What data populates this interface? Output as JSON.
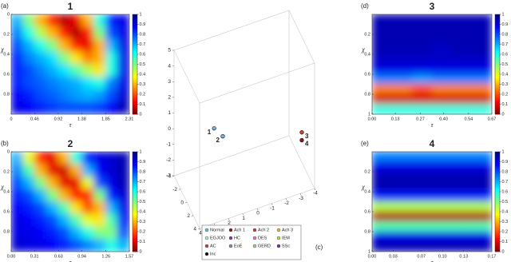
{
  "chart_data": [
    {
      "type": "heatmap",
      "panel_label": "(a)",
      "title": "1",
      "xlabel": "τ",
      "ylabel": "χ",
      "xlim": [
        0,
        2.31
      ],
      "xticks": [
        0,
        0.46,
        0.92,
        1.38,
        1.85,
        2.31
      ],
      "ylim": [
        0,
        1
      ],
      "yticks": [
        0,
        0.2,
        0.4,
        0.6,
        0.8
      ],
      "y_inverted": true,
      "clim": [
        0,
        1
      ],
      "cticks": [
        0,
        0.1,
        0.2,
        0.3,
        0.4,
        0.5,
        0.6,
        0.7,
        0.8,
        0.9,
        1
      ],
      "colormap": "jet_r",
      "values": [
        [
          0.7,
          0.5,
          0.3,
          0.15,
          0.05,
          0.1,
          0.3,
          0.6,
          0.85,
          0.9
        ],
        [
          0.75,
          0.6,
          0.45,
          0.3,
          0.15,
          0.05,
          0.15,
          0.5,
          0.8,
          0.9
        ],
        [
          0.8,
          0.7,
          0.6,
          0.5,
          0.3,
          0.15,
          0.1,
          0.3,
          0.7,
          0.9
        ],
        [
          0.85,
          0.75,
          0.7,
          0.65,
          0.5,
          0.35,
          0.25,
          0.3,
          0.6,
          0.9
        ],
        [
          0.85,
          0.8,
          0.75,
          0.7,
          0.65,
          0.55,
          0.45,
          0.35,
          0.6,
          0.9
        ],
        [
          0.85,
          0.8,
          0.78,
          0.75,
          0.72,
          0.7,
          0.65,
          0.6,
          0.75,
          0.9
        ],
        [
          0.88,
          0.85,
          0.8,
          0.78,
          0.75,
          0.72,
          0.7,
          0.72,
          0.8,
          0.92
        ],
        [
          0.9,
          0.88,
          0.85,
          0.82,
          0.8,
          0.8,
          0.8,
          0.82,
          0.88,
          0.95
        ]
      ]
    },
    {
      "type": "heatmap",
      "panel_label": "(b)",
      "title": "2",
      "xlabel": "τ",
      "ylabel": "χ",
      "xlim": [
        0,
        1.57
      ],
      "xticks": [
        {
          "value": 0,
          "label": "0.00"
        },
        0.31,
        0.63,
        0.94,
        1.26,
        1.57
      ],
      "ylim": [
        0,
        1
      ],
      "yticks": [
        0,
        0.2,
        0.4,
        0.6,
        0.8
      ],
      "y_inverted": true,
      "clim": [
        0,
        1
      ],
      "cticks": [
        0,
        0.1,
        0.2,
        0.3,
        0.4,
        0.5,
        0.6,
        0.7,
        0.8,
        0.9,
        1
      ],
      "colormap": "jet_r",
      "values": [
        [
          0.7,
          0.4,
          0.15,
          0.1,
          0.3,
          0.6,
          0.85,
          0.9,
          0.92,
          0.95
        ],
        [
          0.75,
          0.55,
          0.3,
          0.1,
          0.08,
          0.3,
          0.7,
          0.88,
          0.92,
          0.95
        ],
        [
          0.8,
          0.7,
          0.5,
          0.3,
          0.1,
          0.1,
          0.4,
          0.8,
          0.9,
          0.95
        ],
        [
          0.85,
          0.8,
          0.7,
          0.5,
          0.3,
          0.15,
          0.15,
          0.5,
          0.85,
          0.92
        ],
        [
          0.88,
          0.85,
          0.8,
          0.7,
          0.55,
          0.35,
          0.2,
          0.3,
          0.7,
          0.9
        ],
        [
          0.9,
          0.88,
          0.85,
          0.8,
          0.7,
          0.55,
          0.4,
          0.35,
          0.55,
          0.88
        ],
        [
          0.9,
          0.9,
          0.88,
          0.85,
          0.8,
          0.7,
          0.6,
          0.5,
          0.5,
          0.8
        ],
        [
          0.92,
          0.9,
          0.9,
          0.88,
          0.85,
          0.8,
          0.75,
          0.7,
          0.6,
          0.7
        ]
      ]
    },
    {
      "type": "scatter3d",
      "panel_label": "(c)",
      "xlim": [
        -4,
        4
      ],
      "xticks": [
        4,
        3,
        2,
        1,
        0,
        -1,
        -2,
        -3,
        -4
      ],
      "ylim": [
        -4,
        4
      ],
      "yticks": [
        -4,
        -2,
        0,
        2,
        4
      ],
      "zlim": [
        -3,
        5
      ],
      "zticks": [
        5,
        4,
        3,
        2,
        1,
        0,
        -1,
        -2,
        -3
      ],
      "series": [
        {
          "name": "Normal",
          "color": "#6fb7e8"
        },
        {
          "name": "EGJOO",
          "color": "#bfe3e3"
        },
        {
          "name": "AC",
          "color": "#c8462c"
        },
        {
          "name": "Inc",
          "color": "#111111"
        },
        {
          "name": "Ach 1",
          "color": "#8b1a1a"
        },
        {
          "name": "HC",
          "color": "#7a3fa0"
        },
        {
          "name": "EoE",
          "color": "#7f8fa6"
        },
        {
          "name": "Ach 2",
          "color": "#d93a3a"
        },
        {
          "name": "DES",
          "color": "#e27bb0"
        },
        {
          "name": "GERD",
          "color": "#9fd18b"
        },
        {
          "name": "Ach 3",
          "color": "#f0b43c"
        },
        {
          "name": "IEM",
          "color": "#c8d44a"
        },
        {
          "name": "SSc",
          "color": "#6a3d9a"
        }
      ],
      "points": {
        "labels": [
          "1",
          "2",
          "3",
          "4"
        ],
        "x": [
          2.1,
          1.5,
          -4,
          -4
        ],
        "y": [
          0,
          0,
          0,
          0
        ],
        "z": [
          1.1,
          0.4,
          -1.1,
          -1.6
        ],
        "colors": [
          "#6fb7e8",
          "#6fb7e8",
          "#c8462c",
          "#8b1a1a"
        ]
      }
    },
    {
      "type": "heatmap",
      "panel_label": "(d)",
      "title": "3",
      "xlabel": "τ",
      "ylabel": "χ",
      "xlim": [
        0,
        0.67
      ],
      "xticks": [
        {
          "value": 0,
          "label": "0.00"
        },
        0.13,
        0.27,
        {
          "value": 0.4,
          "label": "0.40"
        },
        0.54,
        0.67
      ],
      "ylim": [
        0,
        1
      ],
      "yticks": [
        0.2,
        0.4,
        0.6,
        0.8,
        1
      ],
      "y_inverted": true,
      "clim": [
        0,
        1
      ],
      "cticks": [
        0,
        0.1,
        0.2,
        0.3,
        0.4,
        0.5,
        0.6,
        0.7,
        0.8,
        0.9,
        1
      ],
      "colormap": "jet_r",
      "values": [
        [
          0.95,
          0.95,
          0.95,
          0.95,
          0.95,
          0.95
        ],
        [
          0.95,
          0.95,
          0.95,
          0.95,
          0.95,
          0.95
        ],
        [
          0.95,
          0.95,
          0.95,
          0.95,
          0.95,
          0.95
        ],
        [
          0.95,
          0.95,
          0.95,
          0.93,
          0.95,
          0.95
        ],
        [
          0.93,
          0.93,
          0.93,
          0.93,
          0.93,
          0.93
        ],
        [
          0.9,
          0.9,
          0.9,
          0.9,
          0.9,
          0.9
        ],
        [
          0.75,
          0.75,
          0.72,
          0.75,
          0.75,
          0.75
        ],
        [
          0.25,
          0.25,
          0.2,
          0.25,
          0.25,
          0.25
        ],
        [
          0.08,
          0.08,
          0.08,
          0.08,
          0.08,
          0.08
        ],
        [
          0.6,
          0.6,
          0.6,
          0.6,
          0.6,
          0.6
        ]
      ]
    },
    {
      "type": "heatmap",
      "panel_label": "(e)",
      "title": "4",
      "xlabel": "τ",
      "ylabel": "χ",
      "xlim": [
        0,
        0.17
      ],
      "xticks": [
        {
          "value": 0,
          "label": "0.00"
        },
        0.03,
        0.07,
        {
          "value": 0.1,
          "label": "0.10"
        },
        0.13,
        0.17
      ],
      "ylim": [
        0,
        1
      ],
      "yticks": [
        0.2,
        0.4,
        0.6,
        0.8,
        1
      ],
      "y_inverted": true,
      "clim": [
        0,
        1
      ],
      "cticks": [
        0,
        0.1,
        0.2,
        0.3,
        0.4,
        0.5,
        0.6,
        0.7,
        0.8,
        0.9,
        1
      ],
      "colormap": "jet_r",
      "values": [
        [
          0.75,
          0.75,
          0.75,
          0.75,
          0.75,
          0.75
        ],
        [
          0.9,
          0.9,
          0.9,
          0.9,
          0.9,
          0.9
        ],
        [
          0.95,
          0.95,
          0.95,
          0.95,
          0.95,
          0.95
        ],
        [
          0.95,
          0.95,
          0.95,
          0.95,
          0.95,
          0.95
        ],
        [
          0.85,
          0.85,
          0.85,
          0.85,
          0.85,
          0.85
        ],
        [
          0.45,
          0.45,
          0.45,
          0.45,
          0.45,
          0.45
        ],
        [
          0.05,
          0.05,
          0.05,
          0.05,
          0.05,
          0.05
        ],
        [
          0.55,
          0.55,
          0.55,
          0.55,
          0.55,
          0.55
        ],
        [
          0.9,
          0.9,
          0.9,
          0.9,
          0.9,
          0.9
        ],
        [
          0.95,
          0.95,
          0.95,
          0.95,
          0.95,
          0.95
        ]
      ]
    }
  ]
}
